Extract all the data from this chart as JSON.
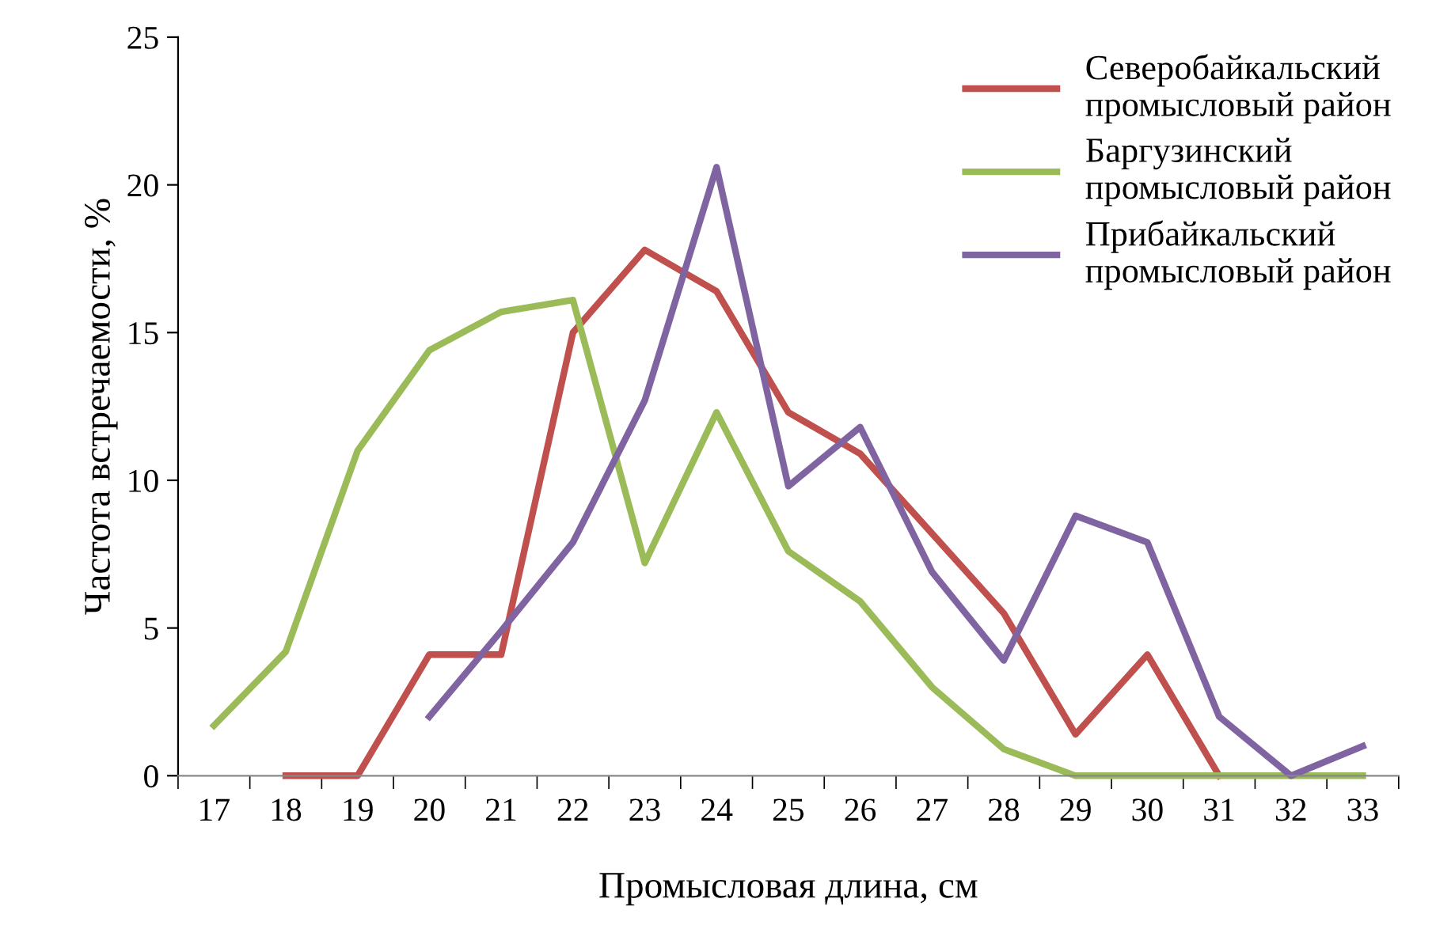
{
  "chart_data": {
    "type": "line",
    "xlabel": "Промысловая длина, см",
    "ylabel": "Частота встречаемости, %",
    "categories": [
      "17",
      "18",
      "19",
      "20",
      "21",
      "22",
      "23",
      "24",
      "25",
      "26",
      "27",
      "28",
      "29",
      "30",
      "31",
      "32",
      "33"
    ],
    "series": [
      {
        "name": "Северобайкальский промысловый район",
        "color": "#c0504d",
        "values": [
          null,
          0,
          0,
          4.1,
          4.1,
          15,
          17.8,
          16.4,
          12.3,
          10.9,
          8.2,
          5.5,
          1.4,
          4.1,
          0,
          null,
          null
        ]
      },
      {
        "name": "Баргузинский промысловый район",
        "color": "#9bbb59",
        "values": [
          1.7,
          4.2,
          11,
          14.4,
          15.7,
          16.1,
          7.2,
          12.3,
          7.6,
          5.9,
          3.0,
          0.9,
          0,
          0,
          0,
          0,
          0
        ]
      },
      {
        "name": "Прибайкальский промысловый район",
        "color": "#8064a2",
        "values": [
          null,
          null,
          null,
          2.0,
          4.9,
          7.9,
          12.7,
          20.6,
          9.8,
          11.8,
          6.9,
          3.9,
          8.8,
          7.9,
          2.0,
          0,
          1.0
        ]
      }
    ],
    "ylim": [
      0,
      25
    ],
    "yticks": [
      0,
      5,
      10,
      15,
      20,
      25
    ],
    "grid": false,
    "legend": "top right",
    "marker": "none",
    "line_style": "solid"
  }
}
